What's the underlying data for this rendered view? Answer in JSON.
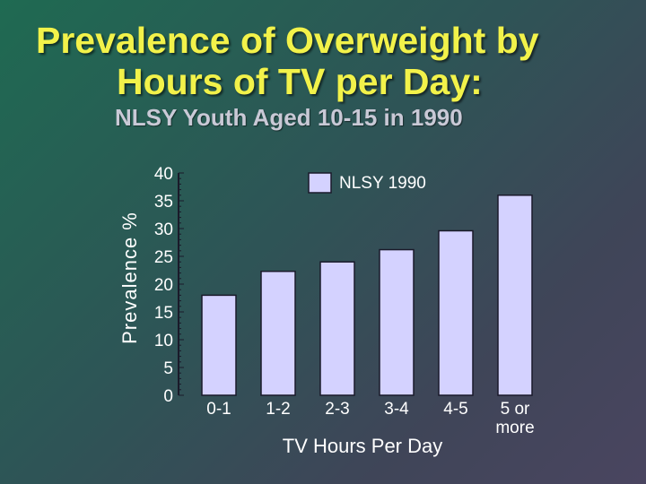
{
  "slide": {
    "title_line1": "Prevalence of Overweight by",
    "title_line2": "Hours of TV per Day:",
    "subtitle": "NLSY Youth Aged 10-15 in 1990"
  },
  "colors": {
    "bar_fill": "#d4d2ff",
    "bar_stroke": "#1a1a2a",
    "title": "#f2f24a",
    "subtitle": "#c9c9d6"
  },
  "chart_data": {
    "type": "bar",
    "title": "Prevalence of Overweight by Hours of TV per Day: NLSY Youth Aged 10-15 in 1990",
    "xlabel": "TV Hours Per Day",
    "ylabel": "Prevalence %",
    "categories": [
      [
        "0-1"
      ],
      [
        "1-2"
      ],
      [
        "2-3"
      ],
      [
        "3-4"
      ],
      [
        "4-5"
      ],
      [
        "5 or",
        "more"
      ]
    ],
    "series": [
      {
        "name": "NLSY 1990",
        "values": [
          18,
          22.3,
          24,
          26.2,
          29.6,
          36
        ]
      }
    ],
    "ylim": [
      0,
      40
    ],
    "yticks": [
      0,
      5,
      10,
      15,
      20,
      25,
      30,
      35,
      40
    ],
    "grid": false,
    "legend_position": "top"
  }
}
